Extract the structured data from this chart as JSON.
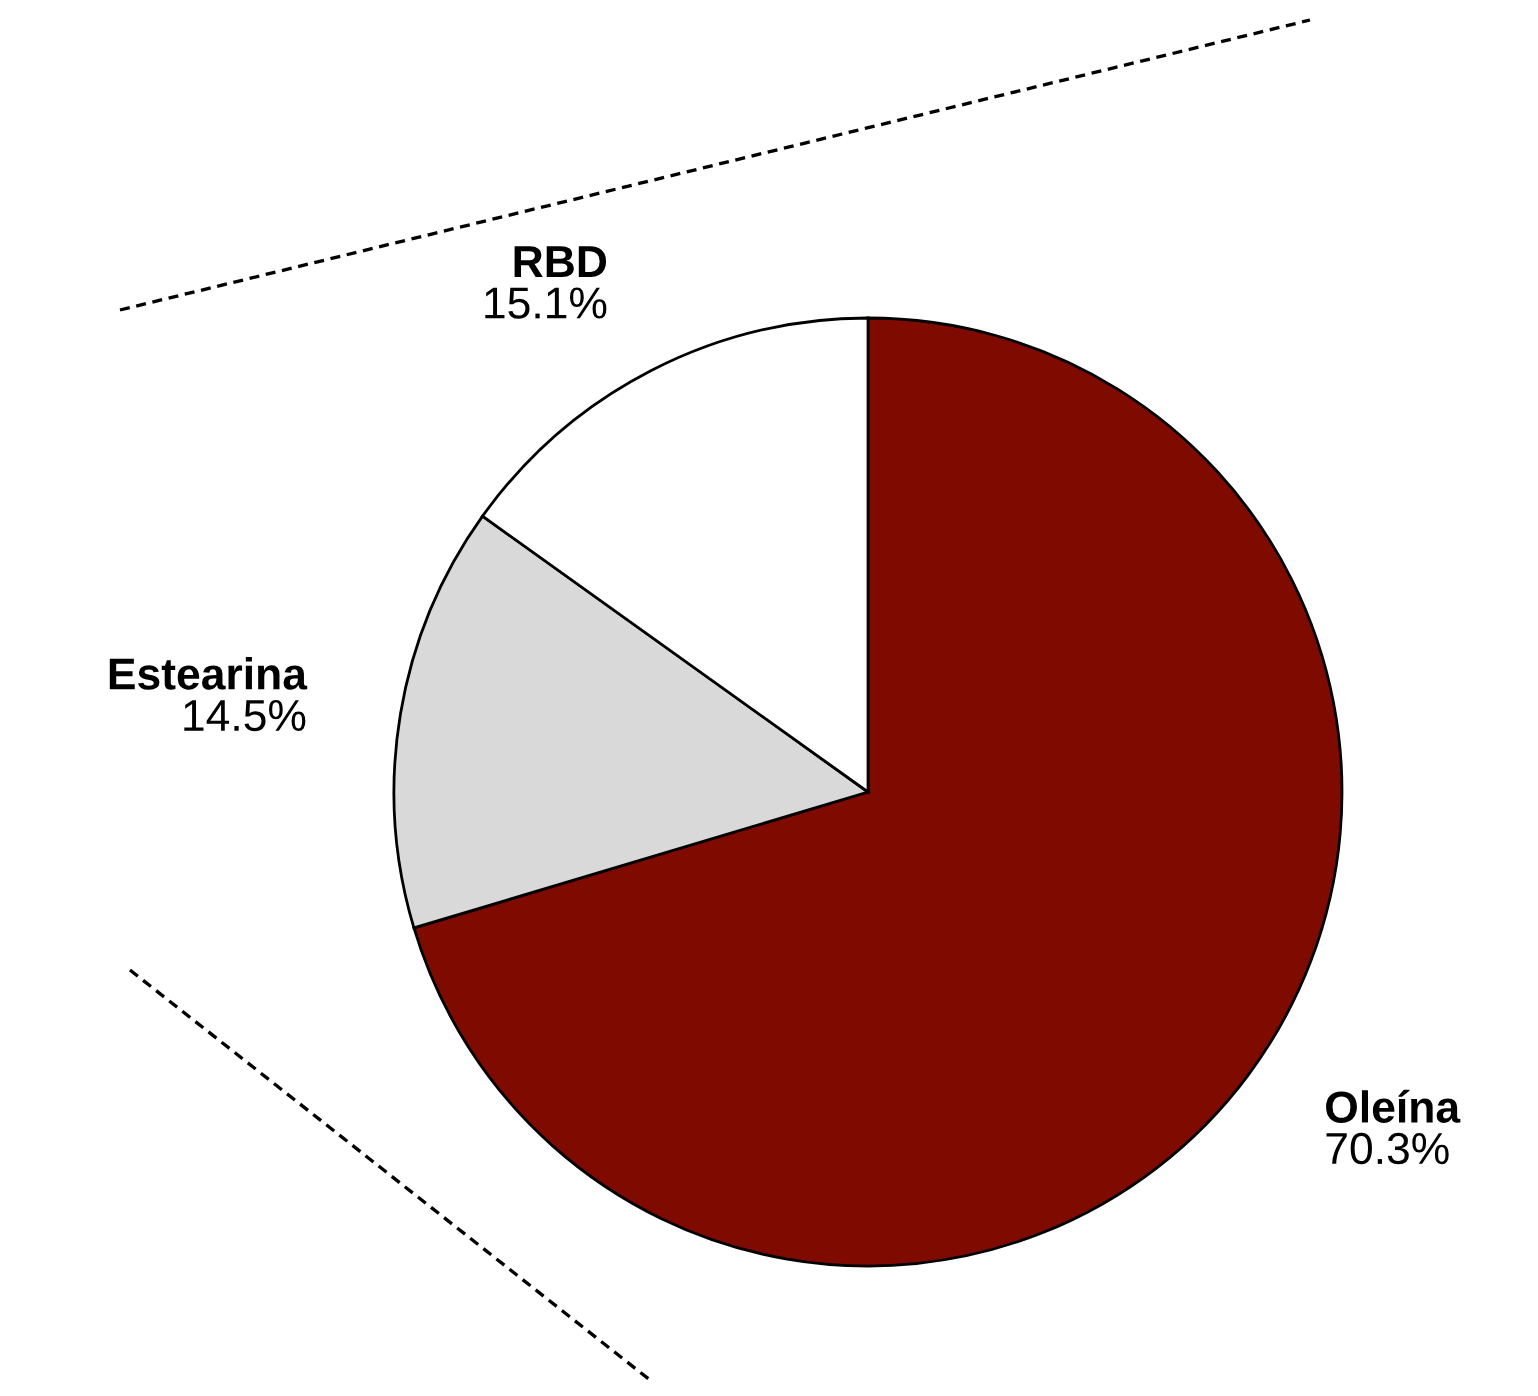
{
  "chart_data": {
    "type": "pie",
    "categories": [
      "Oleína",
      "Estearina",
      "RBD"
    ],
    "values": [
      70.3,
      14.5,
      15.1
    ],
    "colors": [
      "#7f0a00",
      "#d9d9d9",
      "#ffffff"
    ],
    "value_labels": [
      "70.3%",
      "14.5%",
      "15.1%"
    ]
  }
}
